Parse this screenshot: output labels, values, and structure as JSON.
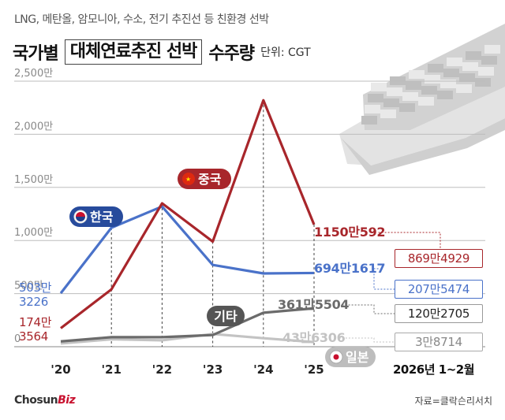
{
  "header": {
    "subtitle": "LNG, 메탄올, 암모니아, 수소, 전기 추진선 등 친환경 선박",
    "title_pre": "국가별",
    "title_boxed": "대체연료추진 선박",
    "title_post": "수주량",
    "unit": "단위: CGT"
  },
  "footer": {
    "brand_main": "Chosun",
    "brand_accent": "Biz",
    "source": "자료=클락슨리서치",
    "period_label": "2026년 1~2월"
  },
  "colors": {
    "korea": "#4a72c9",
    "china": "#a8262b",
    "other": "#6b6b6b",
    "japan": "#c3c3c3",
    "grid": "#bdbdbd"
  },
  "chart_data": {
    "type": "line",
    "categories": [
      "'20",
      "'21",
      "'22",
      "'23",
      "'24",
      "'25"
    ],
    "y_tick_labels": [
      "0",
      "500만",
      "1,000만",
      "1,500만",
      "2,000만",
      "2,500만"
    ],
    "ylim": [
      0,
      25000000
    ],
    "grid": "horizontal",
    "series": [
      {
        "name": "한국",
        "color_key": "korea",
        "values": [
          5033226,
          11200000,
          13200000,
          7700000,
          6900000,
          6941617
        ],
        "first_label_line1": "503만",
        "first_label_line2": "3226",
        "last_label": "694만1617",
        "period_value": "207만5474"
      },
      {
        "name": "중국",
        "color_key": "china",
        "values": [
          1743564,
          5400000,
          13500000,
          9900000,
          23200000,
          11500592
        ],
        "first_label_line1": "174만",
        "first_label_line2": "3564",
        "last_label": "1150만592",
        "period_value": "869만4929"
      },
      {
        "name": "기타",
        "color_key": "other",
        "values": [
          500000,
          900000,
          900000,
          1100000,
          3200000,
          3615504
        ],
        "last_label": "361만5504",
        "period_value": "120만2705"
      },
      {
        "name": "일본",
        "color_key": "japan",
        "values": [
          300000,
          700000,
          600000,
          1200000,
          800000,
          436306
        ],
        "last_label": "43만6306",
        "period_value": "3만8714"
      }
    ]
  }
}
